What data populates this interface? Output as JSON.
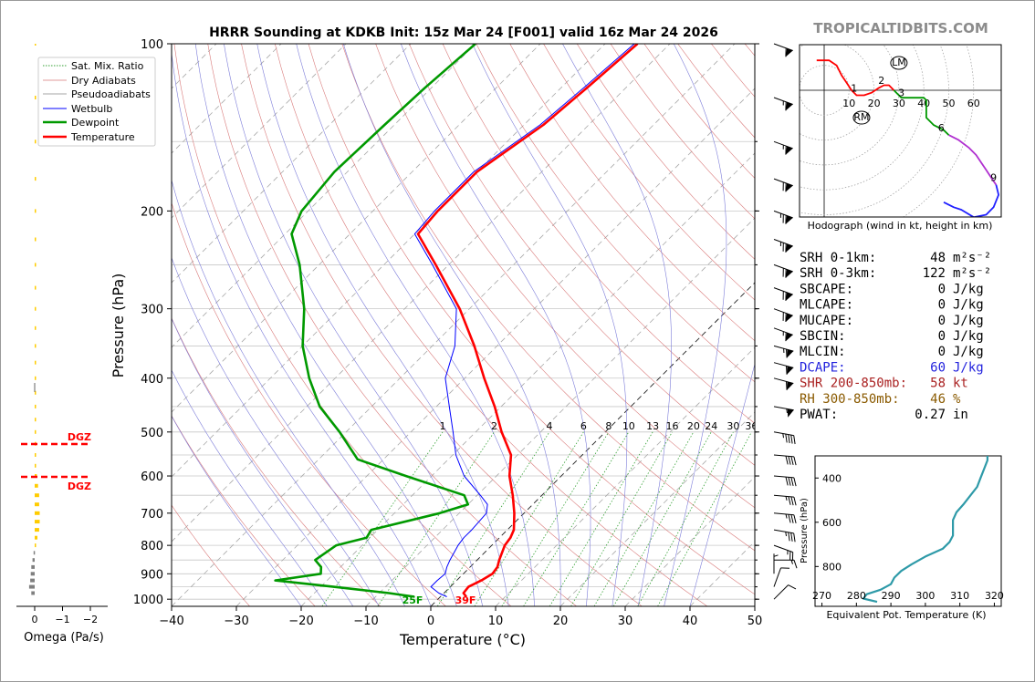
{
  "title": "HRRR Sounding at KDKB Init: 15z Mar 24 [F001] valid 16z Mar 24 2026",
  "brand": "TROPICALTIDBITS.COM",
  "colors": {
    "temperature": "#ff0000",
    "dewpoint": "#009900",
    "wetbulb": "#0000ff",
    "dry_adiabat": "#d97a7a",
    "moist_adiabat": "#7d7dd9",
    "mixing_ratio": "#33a033",
    "isotherm": "#888888",
    "omega_pos": "#ffcc00",
    "omega_neg": "#808080",
    "dgz": "#ff0000",
    "theta_e": "#2e9aa8",
    "dcape": "#2222dd",
    "shear": "#aa2222",
    "rh": "#8a5a00"
  },
  "chart_data": [
    {
      "type": "line",
      "name": "skew-t",
      "xlabel": "Temperature (°C)",
      "ylabel": "Pressure (hPa)",
      "xlim": [
        -40,
        50
      ],
      "ylim": [
        1030,
        100
      ],
      "y_scale": "log",
      "skew_deg": 45,
      "x_ticks": [
        "−40",
        "−30",
        "−20",
        "−10",
        "0",
        "10",
        "20",
        "30",
        "40",
        "50"
      ],
      "x_tick_values": [
        -40,
        -30,
        -20,
        -10,
        0,
        10,
        20,
        30,
        40,
        50
      ],
      "y_ticks": [
        "1000",
        "900",
        "800",
        "700",
        "600",
        "500",
        "400",
        "300",
        "200",
        "100"
      ],
      "y_tick_values": [
        1000,
        900,
        800,
        700,
        600,
        500,
        400,
        300,
        200,
        100
      ],
      "mixing_ratio_labels": [
        "1",
        "2",
        "4",
        "6",
        "8",
        "10",
        "13",
        "16",
        "20",
        "24",
        "30",
        "36"
      ],
      "mixing_ratio_values": [
        1,
        2,
        4,
        6,
        8,
        10,
        13,
        16,
        20,
        24,
        30,
        36
      ],
      "legend": [
        "Sat. Mix. Ratio",
        "Dry Adiabats",
        "Pseudoadiabats",
        "Wetbulb",
        "Dewpoint",
        "Temperature"
      ],
      "legend_position": "top-left",
      "surface_temp_label": "39F",
      "surface_dew_label": "25F",
      "series": [
        {
          "name": "Temperature",
          "p": [
            990,
            975,
            950,
            925,
            900,
            875,
            850,
            800,
            775,
            750,
            700,
            650,
            600,
            550,
            500,
            450,
            400,
            350,
            300,
            250,
            220,
            200,
            170,
            140,
            120,
            100
          ],
          "t": [
            4.0,
            3.0,
            2.8,
            3.8,
            4.5,
            4.2,
            3.4,
            2.0,
            1.7,
            1.0,
            -1.5,
            -4.5,
            -8.0,
            -11.0,
            -16.0,
            -21.0,
            -27.0,
            -33.5,
            -41.5,
            -52.0,
            -59.5,
            -60.0,
            -60.0,
            -57.0,
            -56.0,
            -55.0
          ]
        },
        {
          "name": "Dewpoint",
          "p": [
            990,
            975,
            950,
            925,
            900,
            875,
            850,
            800,
            775,
            750,
            700,
            675,
            650,
            600,
            560,
            500,
            450,
            400,
            350,
            300,
            250,
            220,
            200,
            170,
            140,
            120,
            100
          ],
          "t": [
            -4.0,
            -8.5,
            -18.0,
            -28.0,
            -22.0,
            -23.0,
            -25.0,
            -24.0,
            -20.5,
            -21.0,
            -13.0,
            -10.0,
            -12.0,
            -24.0,
            -34.0,
            -41.0,
            -48.0,
            -54.0,
            -60.0,
            -65.5,
            -73.0,
            -79.0,
            -81.0,
            -82.0,
            -81.5,
            -81.0,
            -80.0
          ]
        },
        {
          "name": "Wetbulb",
          "p": [
            990,
            975,
            950,
            925,
            900,
            875,
            850,
            800,
            775,
            750,
            700,
            675,
            650,
            600,
            550,
            500,
            450,
            400,
            350,
            300,
            250,
            220,
            200,
            170,
            140,
            120,
            100
          ],
          "t": [
            1.0,
            -0.8,
            -3.0,
            -3.0,
            -2.8,
            -3.6,
            -4.2,
            -5.2,
            -5.5,
            -5.5,
            -5.8,
            -7.0,
            -9.5,
            -15.0,
            -19.5,
            -23.5,
            -28.0,
            -33.0,
            -36.5,
            -42.0,
            -52.5,
            -60.0,
            -60.5,
            -60.5,
            -57.5,
            -56.5,
            -55.5
          ]
        }
      ],
      "dgz_label": "DGZ"
    },
    {
      "type": "bar",
      "name": "omega",
      "xlabel": "Omega (Pa/s)",
      "x_ticks": [
        "0",
        "−1",
        "−2"
      ],
      "x_tick_values": [
        0,
        -1,
        -2
      ],
      "p": [
        975,
        950,
        925,
        900,
        875,
        850,
        825,
        800,
        775,
        750,
        725,
        700,
        675,
        650,
        625,
        600,
        575,
        550,
        525,
        500,
        475,
        450,
        425,
        400,
        375,
        350,
        325,
        300,
        275,
        250,
        225,
        200,
        175,
        150,
        125,
        100
      ],
      "omega": [
        0.12,
        0.2,
        0.16,
        0.14,
        0.12,
        0.08,
        0.04,
        -0.02,
        -0.1,
        -0.16,
        -0.18,
        -0.18,
        -0.16,
        -0.16,
        -0.12,
        -0.08,
        -0.05,
        -0.04,
        -0.03,
        -0.02,
        0.0,
        0.0,
        -0.01,
        0.0,
        -0.05,
        -0.05,
        -0.05,
        -0.04,
        -0.03,
        -0.02,
        -0.02,
        -0.02,
        -0.02,
        -0.02,
        -0.02,
        -0.01
      ],
      "dgz_levels": [
        617,
        533
      ]
    },
    {
      "type": "line",
      "name": "hodograph",
      "caption": "Hodograph (wind in kt, height in km)",
      "ring_labels": [
        "10",
        "20",
        "30",
        "40",
        "50",
        "60"
      ],
      "ring_values": [
        10,
        20,
        30,
        40,
        50,
        60
      ],
      "markers": [
        {
          "label": "LM",
          "u": 30,
          "v": 11
        },
        {
          "label": "RM",
          "u": 15,
          "v": -11
        }
      ],
      "height_labels": [
        {
          "label": "1",
          "u": 12,
          "v": 1
        },
        {
          "label": "2",
          "u": 23,
          "v": 4
        },
        {
          "label": "3",
          "u": 31,
          "v": -1
        },
        {
          "label": "6",
          "u": 47,
          "v": -15
        },
        {
          "label": "9",
          "u": 68,
          "v": -35
        }
      ],
      "segments": [
        {
          "color": "#ff0000",
          "u": [
            -3,
            2,
            5,
            7,
            9,
            11,
            13,
            16,
            19,
            22,
            24,
            26,
            28
          ],
          "v": [
            12,
            12,
            10,
            6,
            3,
            0,
            -2,
            -2,
            -1,
            1,
            2,
            2,
            0
          ]
        },
        {
          "color": "#009900",
          "u": [
            28,
            31,
            35,
            38,
            40,
            41,
            41,
            41,
            44,
            48,
            50
          ],
          "v": [
            0,
            -3,
            -3,
            -3,
            -3,
            -4,
            -7,
            -11,
            -14,
            -16,
            -18
          ]
        },
        {
          "color": "#b030d0",
          "u": [
            50,
            54,
            58,
            61,
            63,
            65,
            67,
            69
          ],
          "v": [
            -18,
            -20,
            -23,
            -26,
            -29,
            -32,
            -35,
            -38
          ]
        },
        {
          "color": "#2020ff",
          "u": [
            69,
            70,
            68,
            65,
            60,
            55,
            52,
            48
          ],
          "v": [
            -38,
            -42,
            -47,
            -50,
            -51,
            -48,
            -47,
            -45
          ]
        }
      ]
    },
    {
      "type": "line",
      "name": "theta-e",
      "xlabel": "Equivalent Pot. Temperature (K)",
      "ylabel": "Pressure (hPa)",
      "xlim": [
        268,
        322
      ],
      "ylim": [
        980,
        300
      ],
      "x_ticks": [
        "270",
        "280",
        "290",
        "300",
        "310",
        "320"
      ],
      "x_tick_values": [
        270,
        280,
        290,
        300,
        310,
        320
      ],
      "y_ticks": [
        "400",
        "600",
        "800"
      ],
      "y_tick_values": [
        400,
        600,
        800
      ],
      "series": [
        {
          "name": "theta-e",
          "p": [
            960,
            945,
            925,
            905,
            880,
            850,
            820,
            790,
            755,
            720,
            690,
            660,
            625,
            590,
            555,
            520,
            480,
            440,
            400,
            360,
            320,
            300
          ],
          "theta": [
            286,
            282,
            283,
            287,
            290,
            291,
            293,
            296,
            300,
            305,
            307,
            308,
            308,
            308,
            309,
            311,
            313,
            315,
            316,
            317,
            318,
            318
          ]
        }
      ]
    }
  ],
  "stats": [
    {
      "label": "SRH 0-1km:",
      "value": "48",
      "unit": "m²s⁻²",
      "color": "#000000"
    },
    {
      "label": "SRH 0-3km:",
      "value": "122",
      "unit": "m²s⁻²",
      "color": "#000000"
    },
    {
      "label": "SBCAPE:",
      "value": "0",
      "unit": "J/kg",
      "color": "#000000"
    },
    {
      "label": "MLCAPE:",
      "value": "0",
      "unit": "J/kg",
      "color": "#000000"
    },
    {
      "label": "MUCAPE:",
      "value": "0",
      "unit": "J/kg",
      "color": "#000000"
    },
    {
      "label": "SBCIN:",
      "value": "0",
      "unit": "J/kg",
      "color": "#000000"
    },
    {
      "label": "MLCIN:",
      "value": "0",
      "unit": "J/kg",
      "color": "#000000"
    },
    {
      "label": "DCAPE:",
      "value": "60",
      "unit": "J/kg",
      "color": "#2222dd"
    },
    {
      "label": "SHR 200-850mb:",
      "value": "58",
      "unit": "kt",
      "color": "#aa2222"
    },
    {
      "label": "RH 300-850mb:",
      "value": "46",
      "unit": "%",
      "color": "#8a5a00"
    },
    {
      "label": "PWAT:",
      "value": "0.27",
      "unit": "in",
      "color": "#000000"
    }
  ],
  "wind_barbs": [
    {
      "p": 1000,
      "speed": 10,
      "dir": 225
    },
    {
      "p": 950,
      "speed": 10,
      "dir": 200
    },
    {
      "p": 900,
      "speed": 5,
      "dir": 180
    },
    {
      "p": 850,
      "speed": 15,
      "dir": 270
    },
    {
      "p": 800,
      "speed": 25,
      "dir": 290
    },
    {
      "p": 750,
      "speed": 35,
      "dir": 280
    },
    {
      "p": 700,
      "speed": 35,
      "dir": 275
    },
    {
      "p": 650,
      "speed": 35,
      "dir": 275
    },
    {
      "p": 600,
      "speed": 40,
      "dir": 275
    },
    {
      "p": 550,
      "speed": 40,
      "dir": 275
    },
    {
      "p": 500,
      "speed": 45,
      "dir": 280
    },
    {
      "p": 450,
      "speed": 55,
      "dir": 280
    },
    {
      "p": 400,
      "speed": 60,
      "dir": 285
    },
    {
      "p": 375,
      "speed": 60,
      "dir": 285
    },
    {
      "p": 350,
      "speed": 65,
      "dir": 285
    },
    {
      "p": 325,
      "speed": 65,
      "dir": 290
    },
    {
      "p": 300,
      "speed": 70,
      "dir": 290
    },
    {
      "p": 275,
      "speed": 70,
      "dir": 290
    },
    {
      "p": 250,
      "speed": 70,
      "dir": 290
    },
    {
      "p": 225,
      "speed": 75,
      "dir": 290
    },
    {
      "p": 200,
      "speed": 75,
      "dir": 290
    },
    {
      "p": 175,
      "speed": 70,
      "dir": 290
    },
    {
      "p": 150,
      "speed": 65,
      "dir": 290
    },
    {
      "p": 125,
      "speed": 65,
      "dir": 290
    },
    {
      "p": 100,
      "speed": 60,
      "dir": 290
    }
  ]
}
